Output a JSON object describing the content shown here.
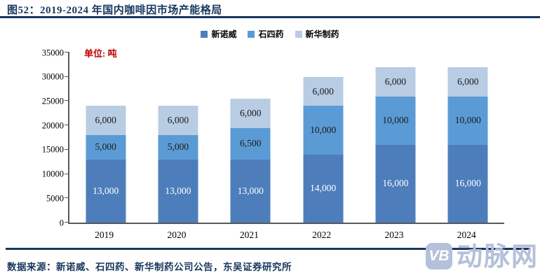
{
  "title": "图52：2019-2024 年国内咖啡因市场产能格局",
  "unit_label": "单位: 吨",
  "legend": [
    {
      "label": "新诺威",
      "color": "#4D7EBB"
    },
    {
      "label": "石四药",
      "color": "#5B9BD5"
    },
    {
      "label": "新华制药",
      "color": "#B8CCE4"
    }
  ],
  "chart_data": {
    "type": "bar",
    "stacked": true,
    "title": "2019-2024 年国内咖啡因市场产能格局",
    "unit": "吨",
    "categories": [
      "2019",
      "2020",
      "2021",
      "2022",
      "2023",
      "2024"
    ],
    "series": [
      {
        "name": "新诺威",
        "color": "#4D7EBB",
        "label_color": "#FFFFFF",
        "values": [
          13000,
          13000,
          13000,
          14000,
          16000,
          16000
        ]
      },
      {
        "name": "石四药",
        "color": "#5B9BD5",
        "label_color": "#1A1A1A",
        "values": [
          5000,
          5000,
          6500,
          10000,
          10000,
          10000
        ]
      },
      {
        "name": "新华制药",
        "color": "#B8CCE4",
        "label_color": "#1A1A1A",
        "values": [
          6000,
          6000,
          6000,
          6000,
          6000,
          6000
        ]
      }
    ],
    "totals": [
      24000,
      24000,
      25500,
      30000,
      32000,
      32000
    ],
    "ylim": [
      0,
      35000
    ],
    "yticks": [
      0,
      5000,
      10000,
      15000,
      20000,
      25000,
      30000,
      35000
    ],
    "grid": false,
    "legend_position": "top",
    "data_labels": true
  },
  "footer": {
    "source_text": "数据来源：新诺威、石四药、新华制药公司公告，东吴证券研究所"
  },
  "watermark": {
    "logo": "VB",
    "text": "动脉网",
    "color": "#B5C0D9"
  },
  "colors": {
    "title": "#17375E",
    "rule": "#17375E",
    "unit_label": "#C00000",
    "axis": "#595959"
  }
}
